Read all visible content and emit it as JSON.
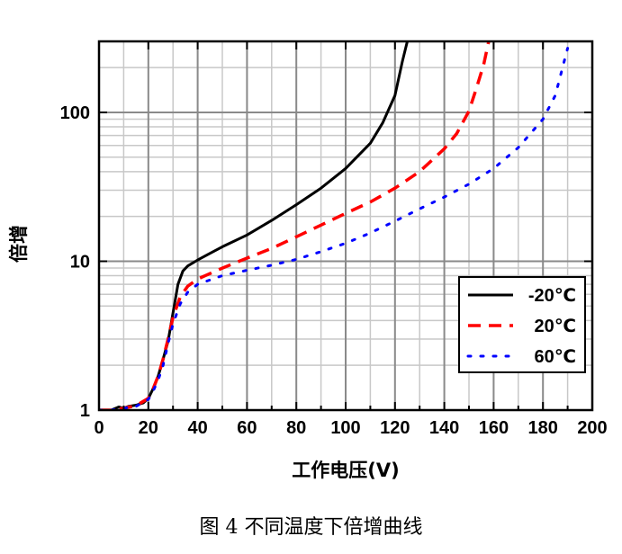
{
  "caption": "图 4 不同温度下倍增曲线",
  "chart_data": {
    "type": "line",
    "xlabel": "工作电压(V)",
    "ylabel": "倍增",
    "xlim": [
      0,
      200
    ],
    "ylim": [
      1,
      300
    ],
    "yscale": "log",
    "x_ticks": [
      0,
      20,
      40,
      60,
      80,
      100,
      120,
      140,
      160,
      180,
      200
    ],
    "x_tick_labels": [
      "0",
      "20",
      "40",
      "60",
      "80",
      "100",
      "120",
      "140",
      "160",
      "180",
      "200"
    ],
    "y_ticks": [
      1,
      10,
      100
    ],
    "y_tick_labels": [
      "1",
      "10",
      "100"
    ],
    "grid": true,
    "legend_position": "bottom-right",
    "series": [
      {
        "name": "-20℃",
        "color": "#000000",
        "style": "solid",
        "points": [
          [
            0,
            1
          ],
          [
            5,
            1.0
          ],
          [
            8,
            1.05
          ],
          [
            10,
            1.03
          ],
          [
            12,
            1.06
          ],
          [
            15,
            1.08
          ],
          [
            18,
            1.12
          ],
          [
            20,
            1.2
          ],
          [
            22,
            1.4
          ],
          [
            24,
            1.7
          ],
          [
            26,
            2.2
          ],
          [
            28,
            2.9
          ],
          [
            30,
            4.5
          ],
          [
            32,
            7.0
          ],
          [
            34,
            8.6
          ],
          [
            36,
            9.3
          ],
          [
            40,
            10.2
          ],
          [
            45,
            11.3
          ],
          [
            50,
            12.5
          ],
          [
            60,
            15
          ],
          [
            70,
            18.8
          ],
          [
            80,
            24
          ],
          [
            90,
            31
          ],
          [
            100,
            42
          ],
          [
            110,
            62
          ],
          [
            115,
            85
          ],
          [
            120,
            130
          ],
          [
            123,
            220
          ],
          [
            125,
            300
          ]
        ]
      },
      {
        "name": "20℃",
        "color": "#ff0000",
        "style": "dashed",
        "points": [
          [
            0,
            1
          ],
          [
            5,
            1.0
          ],
          [
            10,
            1.03
          ],
          [
            15,
            1.07
          ],
          [
            20,
            1.2
          ],
          [
            22,
            1.4
          ],
          [
            24,
            1.7
          ],
          [
            26,
            2.2
          ],
          [
            28,
            3.0
          ],
          [
            30,
            4.2
          ],
          [
            33,
            5.8
          ],
          [
            36,
            6.8
          ],
          [
            40,
            7.6
          ],
          [
            50,
            9.0
          ],
          [
            60,
            10.5
          ],
          [
            70,
            12.2
          ],
          [
            80,
            14.6
          ],
          [
            90,
            17.5
          ],
          [
            100,
            21
          ],
          [
            110,
            25
          ],
          [
            120,
            31
          ],
          [
            130,
            40
          ],
          [
            140,
            57
          ],
          [
            145,
            72
          ],
          [
            150,
            102
          ],
          [
            153,
            145
          ],
          [
            156,
            210
          ],
          [
            158,
            300
          ]
        ]
      },
      {
        "name": "60℃",
        "color": "#0000ff",
        "style": "dotted",
        "points": [
          [
            0,
            1
          ],
          [
            5,
            1.0
          ],
          [
            10,
            1.03
          ],
          [
            15,
            1.06
          ],
          [
            20,
            1.18
          ],
          [
            22,
            1.35
          ],
          [
            24,
            1.6
          ],
          [
            26,
            2.0
          ],
          [
            28,
            2.8
          ],
          [
            30,
            3.8
          ],
          [
            33,
            5.2
          ],
          [
            36,
            6.2
          ],
          [
            40,
            7.0
          ],
          [
            50,
            8.0
          ],
          [
            60,
            8.7
          ],
          [
            70,
            9.4
          ],
          [
            80,
            10.3
          ],
          [
            90,
            11.6
          ],
          [
            100,
            13.2
          ],
          [
            110,
            15.5
          ],
          [
            120,
            18.6
          ],
          [
            130,
            22.5
          ],
          [
            140,
            27
          ],
          [
            150,
            33
          ],
          [
            160,
            42
          ],
          [
            170,
            58
          ],
          [
            180,
            90
          ],
          [
            185,
            130
          ],
          [
            190,
            270
          ]
        ]
      }
    ]
  }
}
